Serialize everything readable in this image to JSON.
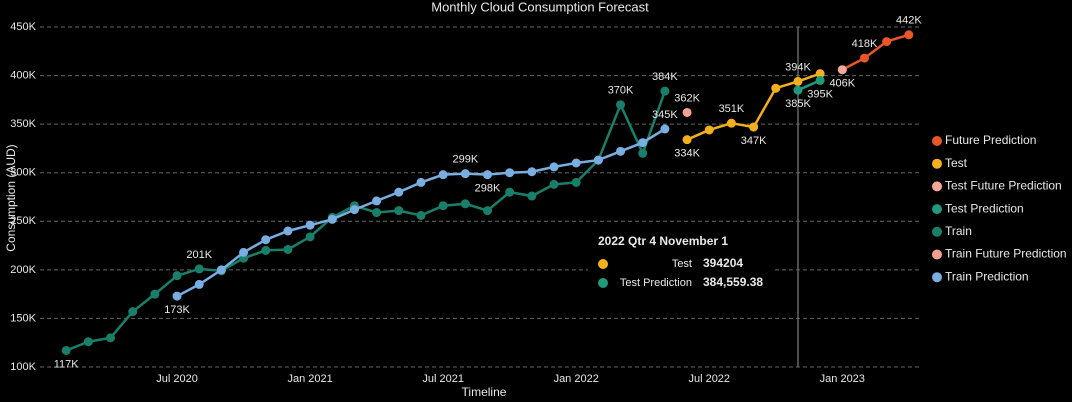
{
  "chart_data": {
    "type": "line",
    "title": "Monthly Cloud Consumption Forecast",
    "x_label": "Timeline",
    "y_label": "Consumption (AUD)",
    "xlim": [
      "2020-01",
      "2023-05"
    ],
    "xticks": [
      {
        "value": "2020-07",
        "label": "Jul 2020"
      },
      {
        "value": "2021-01",
        "label": "Jan 2021"
      },
      {
        "value": "2021-07",
        "label": "Jul 2021"
      },
      {
        "value": "2022-01",
        "label": "Jan 2022"
      },
      {
        "value": "2022-07",
        "label": "Jul 2022"
      },
      {
        "value": "2023-01",
        "label": "Jan 2023"
      }
    ],
    "ylim": [
      100,
      450
    ],
    "yticks": [
      {
        "value": 100,
        "label": "100K"
      },
      {
        "value": 150,
        "label": "150K"
      },
      {
        "value": 200,
        "label": "200K"
      },
      {
        "value": 250,
        "label": "250K"
      },
      {
        "value": 300,
        "label": "300K"
      },
      {
        "value": 350,
        "label": "350K"
      },
      {
        "value": 400,
        "label": "400K"
      },
      {
        "value": 450,
        "label": "450K"
      }
    ],
    "grid": true,
    "legend": "right",
    "series": [
      {
        "name": "Future Prediction",
        "color": "#e8562a",
        "x": [
          "2023-01",
          "2023-02",
          "2023-03",
          "2023-04"
        ],
        "values": [
          406,
          418,
          435,
          442
        ],
        "value_labels": [
          null,
          "418K",
          null,
          "442K"
        ]
      },
      {
        "name": "Test",
        "color": "#f2b01e",
        "x": [
          "2022-06",
          "2022-07",
          "2022-08",
          "2022-09",
          "2022-10",
          "2022-11",
          "2022-12"
        ],
        "values": [
          334,
          344,
          351,
          347,
          387,
          394,
          402
        ],
        "value_labels": [
          "334K",
          null,
          "351K",
          "347K",
          null,
          "394K",
          null
        ]
      },
      {
        "name": "Test Future Prediction",
        "color": "#f5a89a",
        "x": [
          "2023-01"
        ],
        "values": [
          406
        ],
        "value_labels": [
          "406K"
        ]
      },
      {
        "name": "Test Prediction",
        "color": "#1f9a7c",
        "x": [
          "2022-11",
          "2022-12"
        ],
        "values": [
          385,
          395
        ],
        "value_labels": [
          "385K",
          "395K"
        ]
      },
      {
        "name": "Train",
        "color": "#1a7f6a",
        "x": [
          "2020-02",
          "2020-03",
          "2020-04",
          "2020-05",
          "2020-06",
          "2020-07",
          "2020-08",
          "2020-09",
          "2020-10",
          "2020-11",
          "2020-12",
          "2021-01",
          "2021-02",
          "2021-03",
          "2021-04",
          "2021-05",
          "2021-06",
          "2021-07",
          "2021-08",
          "2021-09",
          "2021-10",
          "2021-11",
          "2021-12",
          "2022-01",
          "2022-02",
          "2022-03",
          "2022-04",
          "2022-05"
        ],
        "values": [
          117,
          126,
          130,
          157,
          175,
          194,
          201,
          199,
          212,
          220,
          221,
          234,
          254,
          266,
          259,
          261,
          256,
          266,
          268,
          261,
          280,
          276,
          288,
          290,
          313,
          370,
          320,
          384
        ],
        "value_labels": [
          "117K",
          null,
          null,
          null,
          null,
          null,
          "201K",
          null,
          null,
          null,
          null,
          null,
          null,
          null,
          null,
          null,
          null,
          null,
          null,
          null,
          null,
          null,
          null,
          null,
          null,
          "370K",
          null,
          "384K"
        ]
      },
      {
        "name": "Train Future Prediction",
        "color": "#f2a08f",
        "x": [
          "2022-06"
        ],
        "values": [
          362
        ],
        "value_labels": [
          "362K"
        ]
      },
      {
        "name": "Train Prediction",
        "color": "#78aee0",
        "x": [
          "2020-07",
          "2020-08",
          "2020-09",
          "2020-10",
          "2020-11",
          "2020-12",
          "2021-01",
          "2021-02",
          "2021-03",
          "2021-04",
          "2021-05",
          "2021-06",
          "2021-07",
          "2021-08",
          "2021-09",
          "2021-10",
          "2021-11",
          "2021-12",
          "2022-01",
          "2022-02",
          "2022-03",
          "2022-04",
          "2022-05"
        ],
        "values": [
          173,
          185,
          200,
          218,
          231,
          240,
          246,
          252,
          262,
          271,
          280,
          290,
          298,
          299,
          298,
          300,
          301,
          306,
          310,
          313,
          322,
          331,
          345
        ],
        "value_labels": [
          "173K",
          null,
          null,
          null,
          null,
          null,
          null,
          null,
          null,
          null,
          null,
          null,
          null,
          "299K",
          "298K",
          null,
          null,
          null,
          null,
          null,
          null,
          null,
          "345K"
        ]
      }
    ],
    "tooltip": {
      "title": "2022 Qtr 4 November 1",
      "rows": [
        "394204",
        "384,559.38"
      ]
    }
  }
}
